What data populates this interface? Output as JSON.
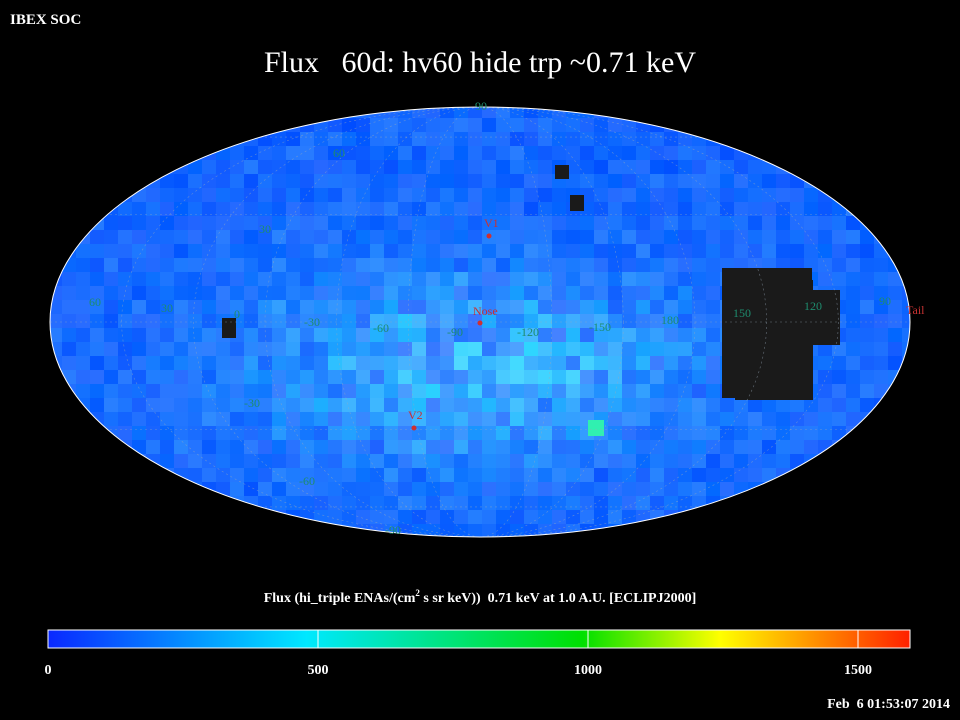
{
  "header": {
    "org": "IBEX SOC",
    "title": "Flux   60d: hv60 hide trp ~0.71 keV"
  },
  "map": {
    "longitude_labels": [
      "60",
      "30",
      "0",
      "-30",
      "-60",
      "-90",
      "-120",
      "-150",
      "180",
      "150",
      "120",
      "90"
    ],
    "latitude_labels": [
      "90",
      "60",
      "30",
      "-30",
      "-60",
      "-90"
    ],
    "markers": [
      {
        "label": "V1"
      },
      {
        "label": "Nose"
      },
      {
        "label": "V2"
      },
      {
        "label": "Tail"
      }
    ]
  },
  "colorbar": {
    "label": "Flux (hi_triple ENAs/(cm",
    "label_sup": "2",
    "label_rest": " s sr keV))  0.71 keV at 1.0 A.U. [ECLIPJ2000]",
    "ticks": [
      "0",
      "500",
      "1000",
      "1500"
    ]
  },
  "timestamp": "Feb  6 01:53:07 2014"
}
